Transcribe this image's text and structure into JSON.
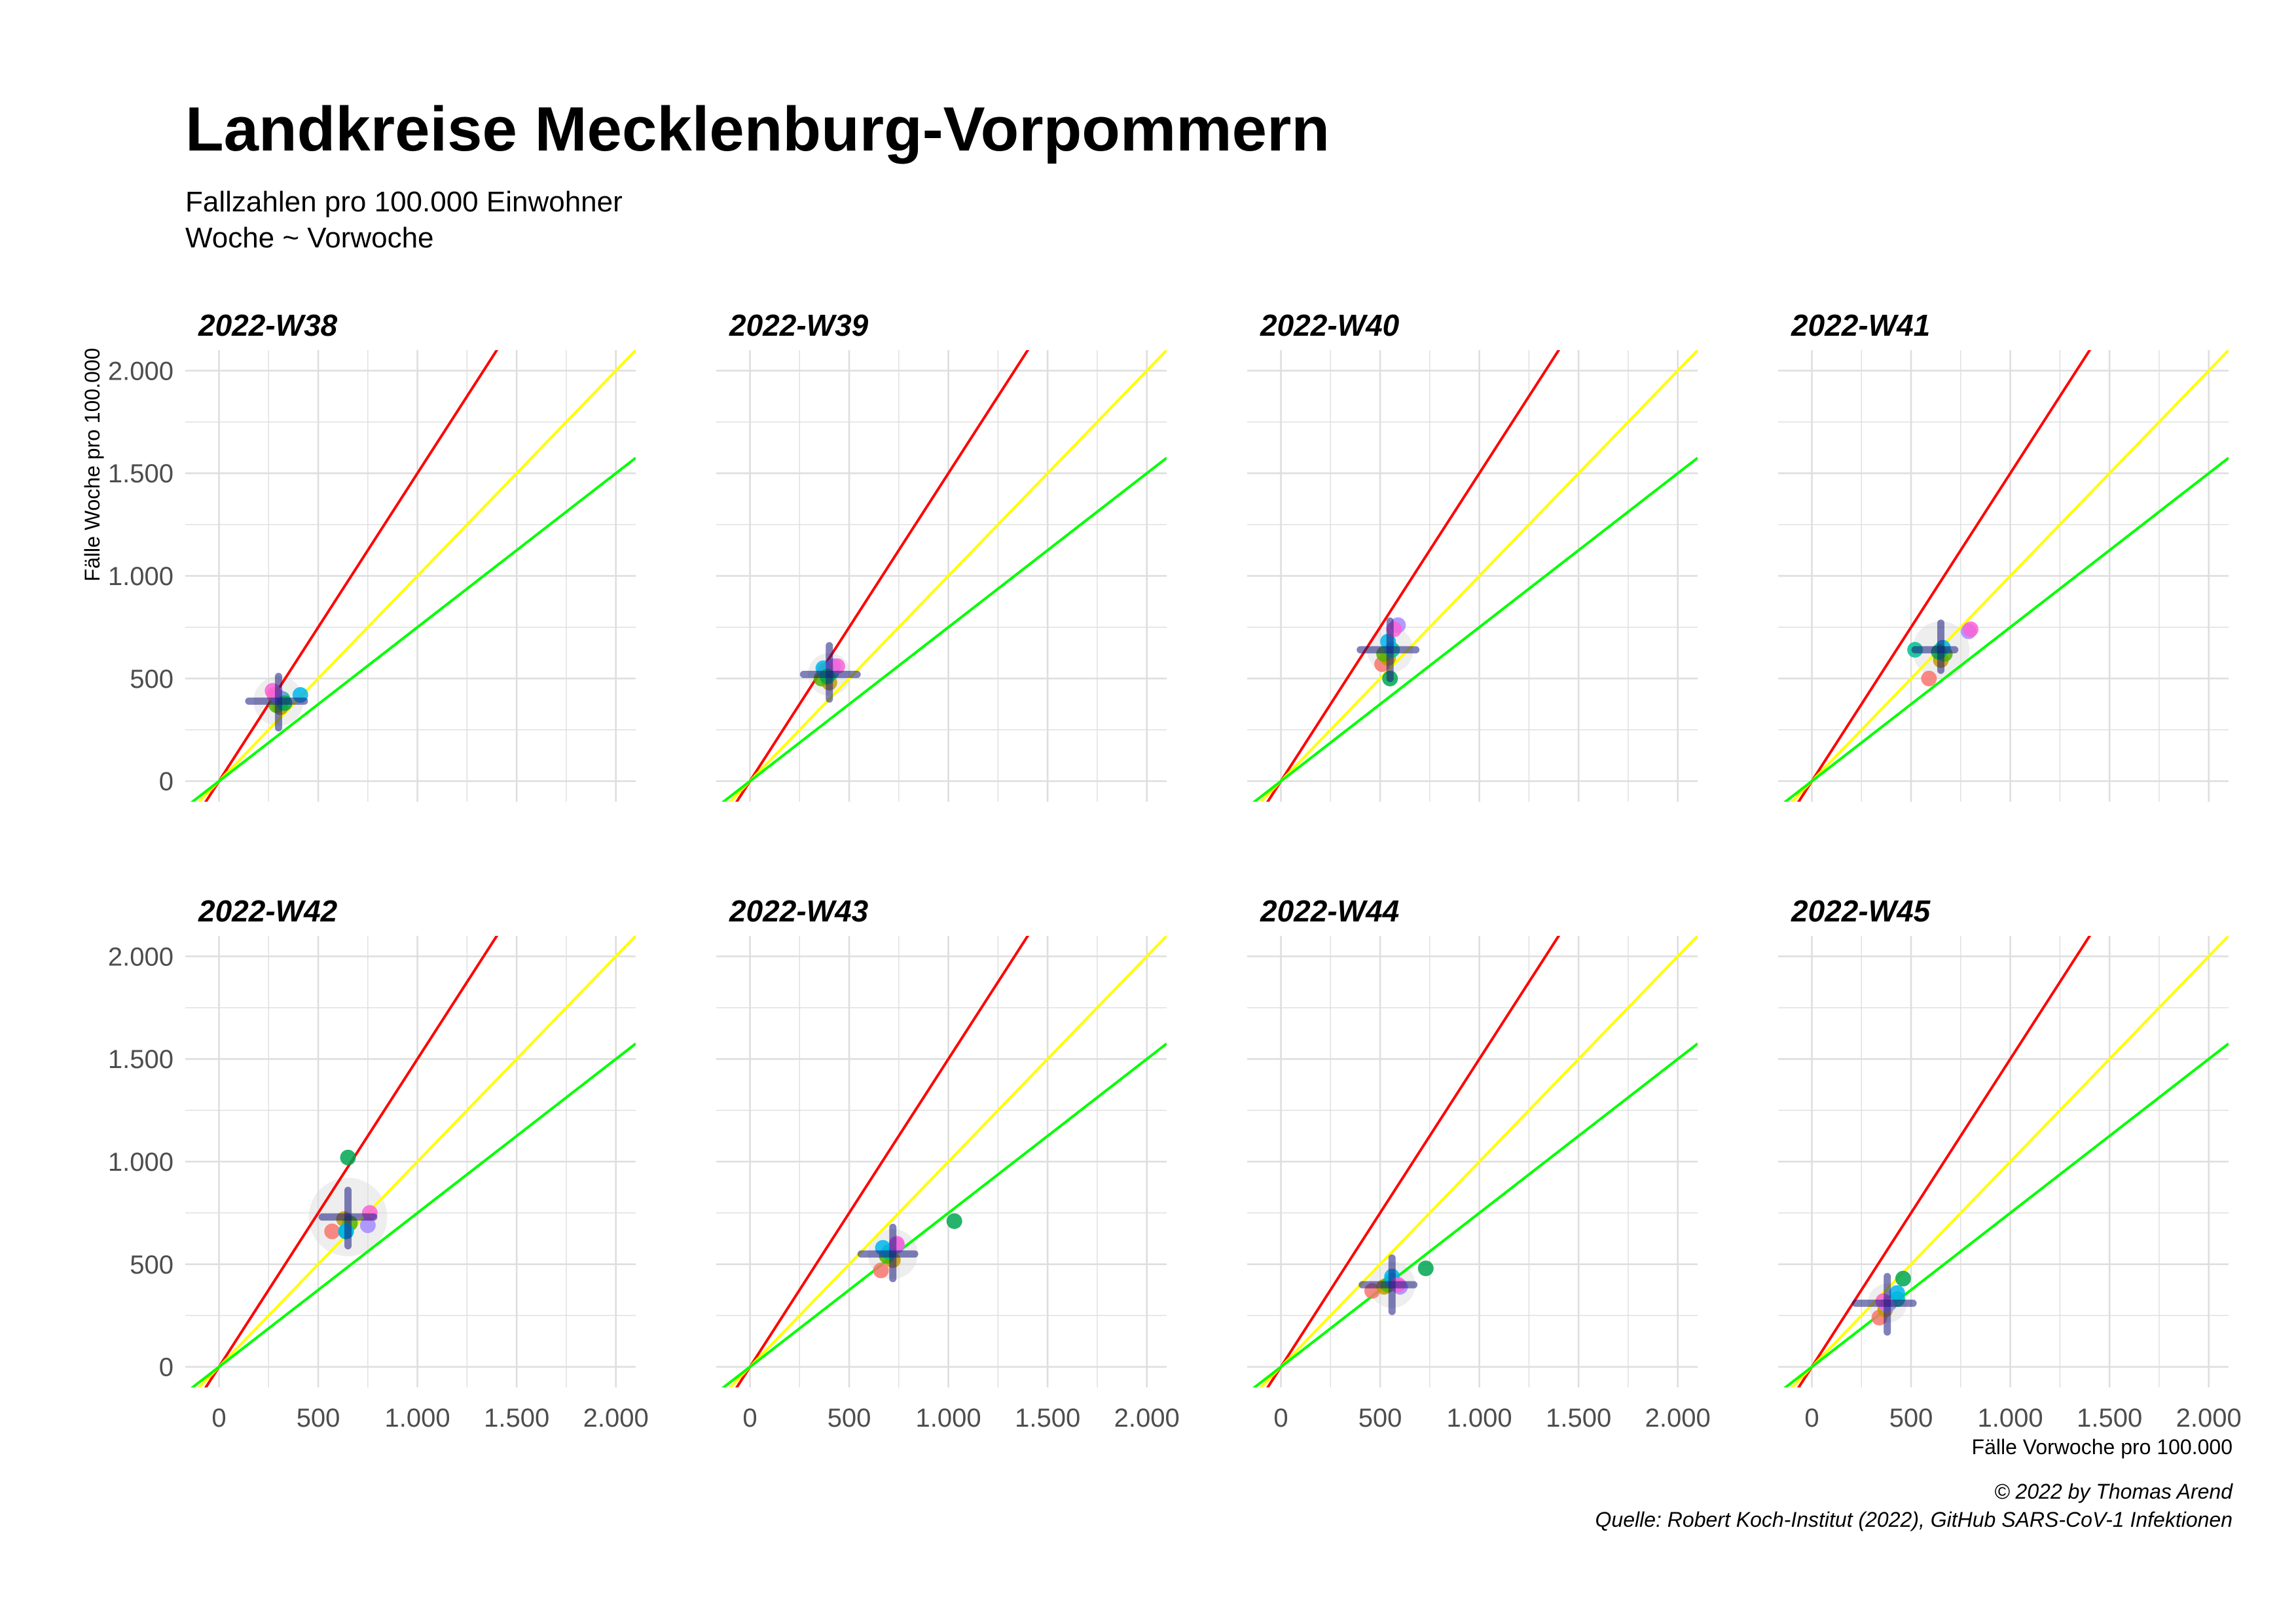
{
  "header": {
    "title": "Landkreise Mecklenburg-Vorpommern",
    "subtitle_line1": "Fallzahlen pro 100.000 Einwohner",
    "subtitle_line2": "Woche ~ Vorwoche"
  },
  "caption": {
    "line1": "© 2022 by Thomas Arend",
    "line2": "Quelle: Robert Koch-Institut (2022), GitHub SARS-CoV-1 Infektionen"
  },
  "chart_data": {
    "type": "scatter",
    "xlabel": "Fälle Vorwoche pro 100.000",
    "ylabel": "Fälle Woche pro 100.000",
    "xlim": [
      -170,
      2100
    ],
    "ylim": [
      -100,
      2100
    ],
    "x_ticks": [
      0,
      500,
      1000,
      1500,
      2000
    ],
    "y_ticks": [
      0,
      500,
      1000,
      1500,
      2000
    ],
    "x_tick_labels": [
      "0",
      "500",
      "1.000",
      "1.500",
      "2.000"
    ],
    "y_tick_labels": [
      "0",
      "500",
      "1.000",
      "1.500",
      "2.000"
    ],
    "grid": true,
    "reference_lines": [
      {
        "slope": 1.5,
        "color": "#ff0000"
      },
      {
        "slope": 1.0,
        "color": "#ffff00"
      },
      {
        "slope": 0.75,
        "color": "#00ff00"
      }
    ],
    "point_colors": [
      "#f8766d",
      "#c49a00",
      "#53b400",
      "#00c094",
      "#00b6eb",
      "#a58aff",
      "#fb61d7",
      "#00a651"
    ],
    "marker_color": "#1a1a80",
    "facets": [
      {
        "label": "2022-W38",
        "center": [
          300,
          390
        ],
        "xerr": [
          150,
          430
        ],
        "yerr": [
          260,
          510
        ],
        "density_r": 140,
        "points": [
          [
            280,
            420
          ],
          [
            310,
            360
          ],
          [
            290,
            370
          ],
          [
            320,
            400
          ],
          [
            410,
            420
          ],
          [
            300,
            410
          ],
          [
            270,
            440
          ],
          [
            330,
            380
          ]
        ]
      },
      {
        "label": "2022-W39",
        "center": [
          400,
          520
        ],
        "xerr": [
          270,
          540
        ],
        "yerr": [
          400,
          660
        ],
        "density_r": 120,
        "points": [
          [
            380,
            540
          ],
          [
            400,
            480
          ],
          [
            360,
            500
          ],
          [
            410,
            530
          ],
          [
            370,
            550
          ],
          [
            420,
            560
          ],
          [
            440,
            560
          ],
          [
            390,
            510
          ]
        ]
      },
      {
        "label": "2022-W40",
        "center": [
          550,
          640
        ],
        "xerr": [
          400,
          680
        ],
        "yerr": [
          500,
          780
        ],
        "density_r": 130,
        "points": [
          [
            510,
            570
          ],
          [
            540,
            600
          ],
          [
            520,
            620
          ],
          [
            560,
            640
          ],
          [
            540,
            680
          ],
          [
            590,
            760
          ],
          [
            570,
            740
          ],
          [
            550,
            500
          ]
        ]
      },
      {
        "label": "2022-W41",
        "center": [
          650,
          640
        ],
        "xerr": [
          520,
          720
        ],
        "yerr": [
          540,
          770
        ],
        "density_r": 160,
        "points": [
          [
            590,
            500
          ],
          [
            650,
            590
          ],
          [
            670,
            620
          ],
          [
            520,
            640
          ],
          [
            660,
            650
          ],
          [
            790,
            730
          ],
          [
            800,
            740
          ],
          [
            640,
            630
          ]
        ]
      },
      {
        "label": "2022-W42",
        "center": [
          650,
          730
        ],
        "xerr": [
          520,
          780
        ],
        "yerr": [
          590,
          860
        ],
        "density_r": 220,
        "points": [
          [
            570,
            660
          ],
          [
            630,
            720
          ],
          [
            660,
            700
          ],
          [
            640,
            660
          ],
          [
            640,
            660
          ],
          [
            750,
            690
          ],
          [
            760,
            750
          ],
          [
            650,
            1020
          ]
        ]
      },
      {
        "label": "2022-W43",
        "center": [
          720,
          550
        ],
        "xerr": [
          560,
          830
        ],
        "yerr": [
          430,
          680
        ],
        "density_r": 140,
        "points": [
          [
            660,
            470
          ],
          [
            720,
            520
          ],
          [
            690,
            540
          ],
          [
            700,
            560
          ],
          [
            670,
            580
          ],
          [
            740,
            590
          ],
          [
            740,
            600
          ],
          [
            1030,
            710
          ]
        ]
      },
      {
        "label": "2022-W44",
        "center": [
          560,
          400
        ],
        "xerr": [
          410,
          670
        ],
        "yerr": [
          270,
          530
        ],
        "density_r": 130,
        "points": [
          [
            460,
            370
          ],
          [
            520,
            390
          ],
          [
            540,
            400
          ],
          [
            560,
            420
          ],
          [
            560,
            440
          ],
          [
            600,
            390
          ],
          [
            590,
            400
          ],
          [
            730,
            480
          ]
        ]
      },
      {
        "label": "2022-W45",
        "center": [
          380,
          310
        ],
        "xerr": [
          220,
          510
        ],
        "yerr": [
          170,
          440
        ],
        "density_r": 110,
        "points": [
          [
            340,
            240
          ],
          [
            370,
            280
          ],
          [
            390,
            310
          ],
          [
            430,
            330
          ],
          [
            430,
            360
          ],
          [
            380,
            300
          ],
          [
            360,
            320
          ],
          [
            460,
            430
          ]
        ]
      }
    ]
  }
}
